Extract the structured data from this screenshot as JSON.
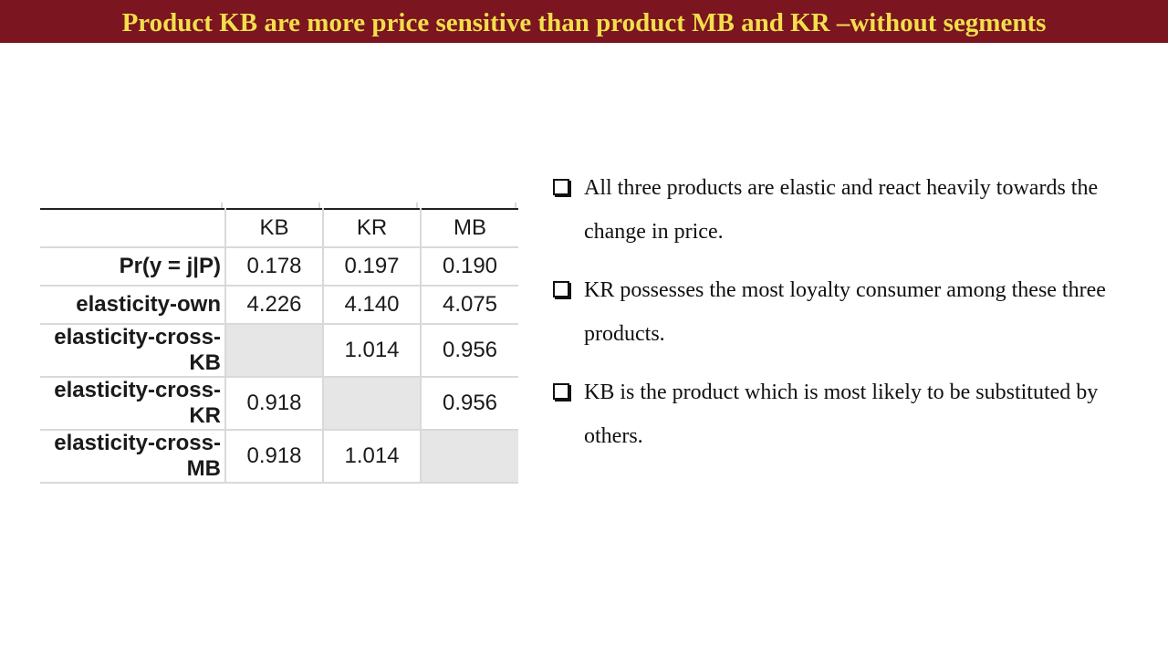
{
  "slide": {
    "title": "Product KB are more price sensitive than product MB and KR –without segments",
    "colors": {
      "title_bar": "#7b1520",
      "title_text": "#f2df4a"
    }
  },
  "table": {
    "columns": [
      "KB",
      "KR",
      "MB"
    ],
    "rows": [
      {
        "label": "Pr(y = j|P)",
        "values": [
          "0.178",
          "0.197",
          "0.190"
        ]
      },
      {
        "label": "elasticity-own",
        "values": [
          "4.226",
          "4.140",
          "4.075"
        ]
      },
      {
        "label": "elasticity-cross-KB",
        "values": [
          "",
          "1.014",
          "0.956"
        ]
      },
      {
        "label": "elasticity-cross-KR",
        "values": [
          "0.918",
          "",
          "0.956"
        ]
      },
      {
        "label": "elasticity-cross-MB",
        "values": [
          "0.918",
          "1.014",
          ""
        ]
      }
    ]
  },
  "bullets": [
    {
      "icon": "checkbox-square-icon",
      "text": "All three products are elastic and react heavily towards the change in price."
    },
    {
      "icon": "checkbox-square-icon",
      "text": "KR possesses the most loyalty consumer among these three products."
    },
    {
      "icon": "checkbox-square-icon",
      "text": "KB is the product which is most likely to be substituted by others."
    }
  ]
}
